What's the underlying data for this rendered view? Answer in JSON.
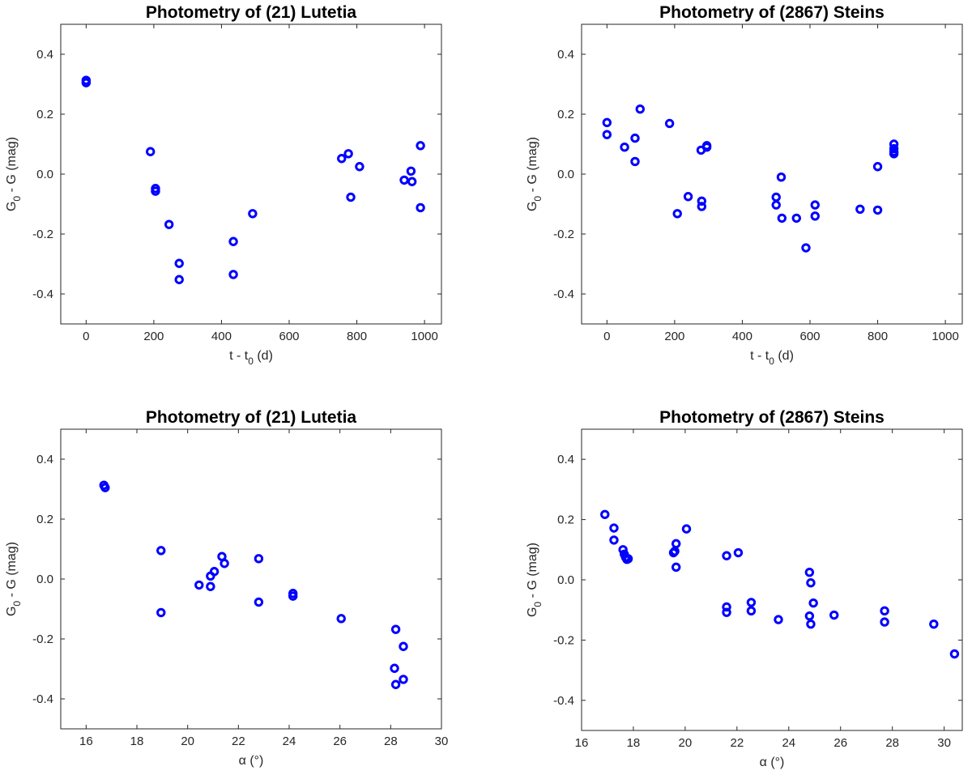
{
  "chart_data": [
    {
      "type": "scatter",
      "title": "Photometry of (21) Lutetia",
      "xlabel": {
        "main": "t - t",
        "sub": "0",
        "tail": " (d)"
      },
      "ylabel": {
        "main": "G",
        "sub": "0",
        "tail": " - G (mag)"
      },
      "xlim": [
        -75,
        1050
      ],
      "ylim": [
        -0.5,
        0.5
      ],
      "xticks": [
        0,
        200,
        400,
        600,
        800,
        1000
      ],
      "xtick_labels": [
        "0",
        "200",
        "400",
        "600",
        "800",
        "1000"
      ],
      "yticks": [
        -0.4,
        -0.2,
        0.0,
        0.2,
        0.4
      ],
      "ytick_labels": [
        "-0.4",
        "-0.2",
        "0.0",
        "0.2",
        "0.4"
      ],
      "color": "#0000ff",
      "points": [
        [
          0,
          0.313
        ],
        [
          0,
          0.305
        ],
        [
          190,
          0.075
        ],
        [
          205,
          -0.048
        ],
        [
          205,
          -0.057
        ],
        [
          245,
          -0.168
        ],
        [
          275,
          -0.298
        ],
        [
          275,
          -0.352
        ],
        [
          435,
          -0.225
        ],
        [
          435,
          -0.335
        ],
        [
          492,
          -0.132
        ],
        [
          755,
          0.052
        ],
        [
          775,
          0.068
        ],
        [
          782,
          -0.077
        ],
        [
          808,
          0.025
        ],
        [
          940,
          -0.02
        ],
        [
          960,
          0.01
        ],
        [
          963,
          -0.025
        ],
        [
          988,
          0.095
        ],
        [
          988,
          -0.112
        ]
      ]
    },
    {
      "type": "scatter",
      "title": "Photometry of (2867) Steins",
      "xlabel": {
        "main": "t - t",
        "sub": "0",
        "tail": " (d)"
      },
      "ylabel": {
        "main": "G",
        "sub": "0",
        "tail": " - G (mag)"
      },
      "xlim": [
        -75,
        1050
      ],
      "ylim": [
        -0.5,
        0.5
      ],
      "xticks": [
        0,
        200,
        400,
        600,
        800,
        1000
      ],
      "xtick_labels": [
        "0",
        "200",
        "400",
        "600",
        "800",
        "1000"
      ],
      "yticks": [
        -0.4,
        -0.2,
        0.0,
        0.2,
        0.4
      ],
      "ytick_labels": [
        "-0.4",
        "-0.2",
        "0.0",
        "0.2",
        "0.4"
      ],
      "color": "#0000ff",
      "points": [
        [
          0,
          0.172
        ],
        [
          0,
          0.132
        ],
        [
          52,
          0.09
        ],
        [
          83,
          0.12
        ],
        [
          83,
          0.042
        ],
        [
          98,
          0.217
        ],
        [
          185,
          0.169
        ],
        [
          208,
          -0.132
        ],
        [
          240,
          -0.075
        ],
        [
          278,
          0.08
        ],
        [
          280,
          -0.09
        ],
        [
          280,
          -0.108
        ],
        [
          295,
          0.09
        ],
        [
          295,
          0.095
        ],
        [
          500,
          -0.077
        ],
        [
          500,
          -0.103
        ],
        [
          515,
          -0.01
        ],
        [
          517,
          -0.147
        ],
        [
          560,
          -0.147
        ],
        [
          588,
          -0.246
        ],
        [
          615,
          -0.103
        ],
        [
          615,
          -0.14
        ],
        [
          748,
          -0.117
        ],
        [
          800,
          0.025
        ],
        [
          800,
          -0.12
        ],
        [
          848,
          0.1
        ],
        [
          848,
          0.085
        ],
        [
          848,
          0.075
        ],
        [
          848,
          0.068
        ]
      ]
    },
    {
      "type": "scatter",
      "title": "Photometry of (21) Lutetia",
      "xlabel": {
        "main": "α (°)",
        "sub": "",
        "tail": ""
      },
      "ylabel": {
        "main": "G",
        "sub": "0",
        "tail": " - G (mag)"
      },
      "xlim": [
        15,
        30
      ],
      "ylim": [
        -0.5,
        0.5
      ],
      "xticks": [
        16,
        18,
        20,
        22,
        24,
        26,
        28,
        30
      ],
      "xtick_labels": [
        "16",
        "18",
        "20",
        "22",
        "24",
        "26",
        "28",
        "30"
      ],
      "yticks": [
        -0.4,
        -0.2,
        0.0,
        0.2,
        0.4
      ],
      "ytick_labels": [
        "-0.4",
        "-0.2",
        "0.0",
        "0.2",
        "0.4"
      ],
      "color": "#0000ff",
      "points": [
        [
          16.7,
          0.313
        ],
        [
          16.75,
          0.305
        ],
        [
          18.95,
          0.095
        ],
        [
          18.95,
          -0.112
        ],
        [
          20.45,
          -0.02
        ],
        [
          20.9,
          0.01
        ],
        [
          20.9,
          -0.025
        ],
        [
          21.05,
          0.025
        ],
        [
          21.35,
          0.075
        ],
        [
          21.45,
          0.052
        ],
        [
          22.8,
          0.068
        ],
        [
          22.8,
          -0.077
        ],
        [
          24.15,
          -0.048
        ],
        [
          24.15,
          -0.057
        ],
        [
          26.05,
          -0.132
        ],
        [
          28.2,
          -0.168
        ],
        [
          28.15,
          -0.298
        ],
        [
          28.2,
          -0.352
        ],
        [
          28.5,
          -0.225
        ],
        [
          28.5,
          -0.335
        ]
      ]
    },
    {
      "type": "scatter",
      "title": "Photometry of (2867) Steins",
      "xlabel": {
        "main": "α (°)",
        "sub": "",
        "tail": ""
      },
      "ylabel": {
        "main": "G",
        "sub": "0",
        "tail": " - G (mag)"
      },
      "xlim": [
        16,
        30.7
      ],
      "ylim": [
        -0.5,
        0.5
      ],
      "xticks": [
        16,
        18,
        20,
        22,
        24,
        26,
        28,
        30
      ],
      "xtick_labels": [
        "16",
        "18",
        "20",
        "22",
        "24",
        "26",
        "28",
        "30"
      ],
      "yticks": [
        -0.4,
        -0.2,
        0.0,
        0.2,
        0.4
      ],
      "ytick_labels": [
        "-0.4",
        "-0.2",
        "0.0",
        "0.2",
        "0.4"
      ],
      "color": "#0000ff",
      "points": [
        [
          16.9,
          0.217
        ],
        [
          17.25,
          0.172
        ],
        [
          17.25,
          0.132
        ],
        [
          17.6,
          0.1
        ],
        [
          17.65,
          0.085
        ],
        [
          17.7,
          0.075
        ],
        [
          17.75,
          0.068
        ],
        [
          17.8,
          0.07
        ],
        [
          19.55,
          0.09
        ],
        [
          19.6,
          0.095
        ],
        [
          19.65,
          0.12
        ],
        [
          19.65,
          0.042
        ],
        [
          20.05,
          0.169
        ],
        [
          21.6,
          0.08
        ],
        [
          21.6,
          -0.09
        ],
        [
          21.6,
          -0.108
        ],
        [
          22.05,
          0.09
        ],
        [
          22.55,
          -0.075
        ],
        [
          22.55,
          -0.103
        ],
        [
          23.6,
          -0.132
        ],
        [
          24.8,
          0.025
        ],
        [
          24.85,
          -0.01
        ],
        [
          24.95,
          -0.077
        ],
        [
          24.8,
          -0.12
        ],
        [
          24.85,
          -0.147
        ],
        [
          25.75,
          -0.117
        ],
        [
          27.7,
          -0.103
        ],
        [
          27.7,
          -0.14
        ],
        [
          29.6,
          -0.147
        ],
        [
          30.4,
          -0.246
        ]
      ]
    }
  ]
}
